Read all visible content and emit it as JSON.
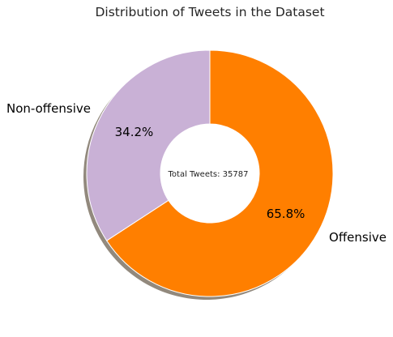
{
  "chart_data": {
    "type": "pie",
    "title": "Distribution of Tweets in the Dataset",
    "center_text": "Total Tweets: 35787",
    "hole": "donut",
    "shadow": true,
    "slices": [
      {
        "label": "Offensive",
        "value": 65.8,
        "pct_label": "65.8%",
        "color": "#ff7f00"
      },
      {
        "label": "Non-offensive",
        "value": 34.2,
        "pct_label": "34.2%",
        "color": "#c9b1d6"
      }
    ]
  }
}
